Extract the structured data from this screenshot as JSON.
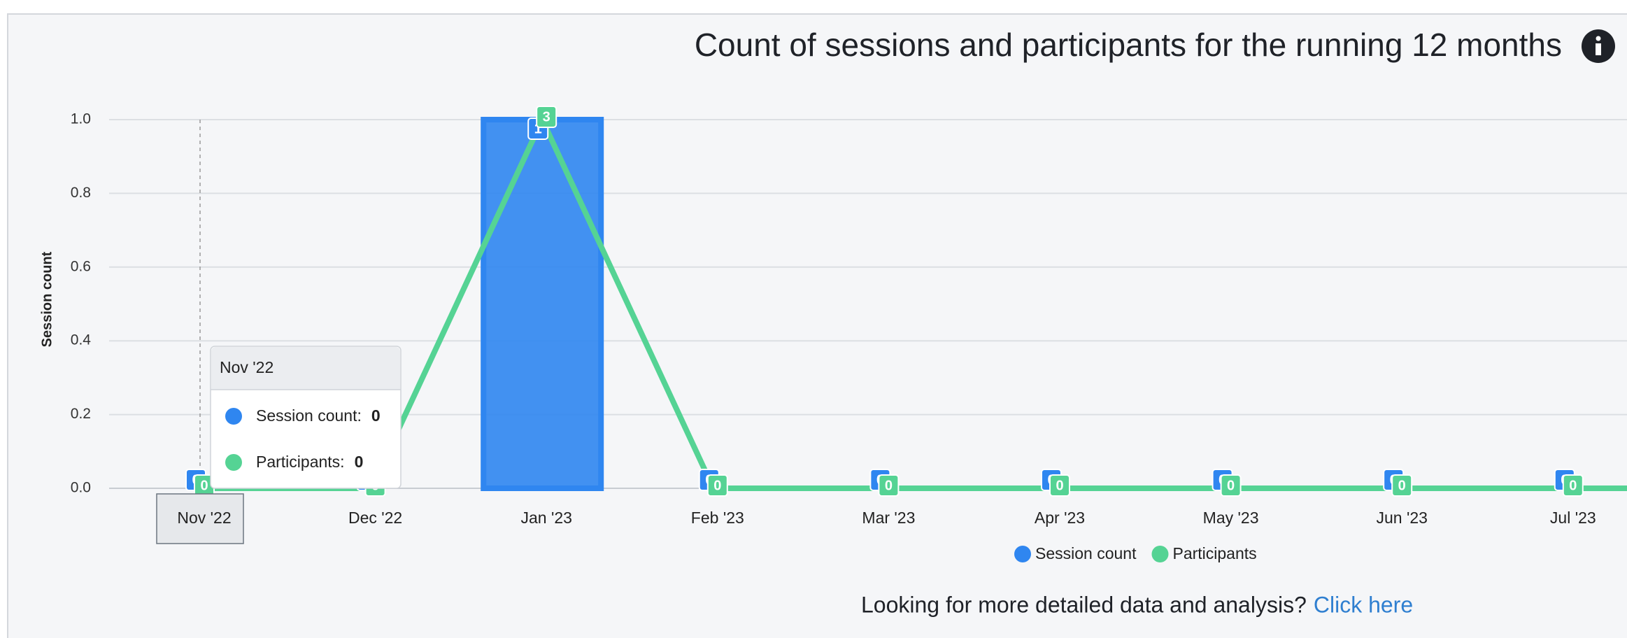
{
  "chart_data": {
    "type": "bar-line",
    "title": "Count of sessions and participants for the running 12 months",
    "y_label": "Session count",
    "categories": [
      "Nov '22",
      "Dec '22",
      "Jan '23",
      "Feb '23",
      "Mar '23",
      "Apr '23",
      "May '23",
      "Jun '23",
      "Jul '23"
    ],
    "series": [
      {
        "name": "Session count",
        "color": "#2f86f0",
        "kind": "bar",
        "values": [
          0,
          0,
          1,
          0,
          0,
          0,
          0,
          0,
          0
        ]
      },
      {
        "name": "Participants",
        "color": "#55d394",
        "kind": "line",
        "axis": "y2",
        "values": [
          0,
          0,
          3,
          0,
          0,
          0,
          0,
          0,
          0
        ]
      }
    ],
    "ylim": [
      0,
      1
    ],
    "yticks": [
      {
        "value": 0,
        "label": "0.0"
      },
      {
        "value": 0.2,
        "label": "0.2"
      },
      {
        "value": 0.4,
        "label": "0.4"
      },
      {
        "value": 0.6,
        "label": "0.6"
      },
      {
        "value": 0.8,
        "label": "0.8"
      },
      {
        "value": 1,
        "label": "1.0"
      }
    ],
    "y2lim": [
      0,
      3
    ],
    "grid": true,
    "legend": "bottom",
    "tooltip": {
      "title": "Nov '22",
      "rows": [
        {
          "label": "Session count:",
          "value": 0
        },
        {
          "label": "Participants:",
          "value": 0
        }
      ]
    }
  },
  "footer": {
    "text": "Looking for more detailed data and analysis?",
    "link": "Click here"
  }
}
